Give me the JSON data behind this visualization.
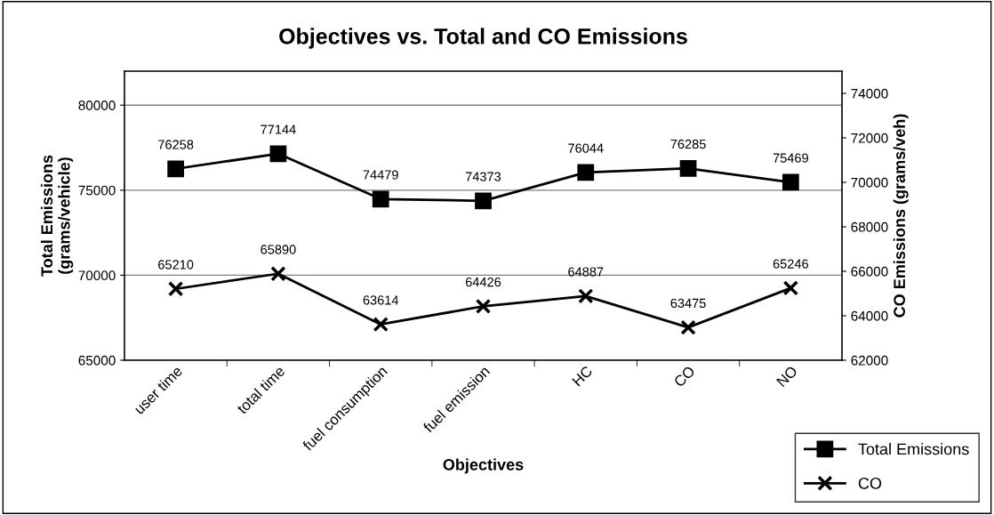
{
  "chart_data": {
    "type": "line",
    "title": "Objectives vs. Total and CO Emissions",
    "xlabel": "Objectives",
    "ylabel": "Total Emissions\n(grams/vehicle)",
    "y2label": "CO Emissions (grams/veh)",
    "categories": [
      "user time",
      "total time",
      "fuel consumption",
      "fuel emission",
      "HC",
      "CO",
      "NO"
    ],
    "series": [
      {
        "name": "Total Emissions",
        "color": "#000000",
        "marker": "square",
        "values": [
          76258,
          77144,
          74479,
          74373,
          76044,
          76285,
          75469
        ]
      },
      {
        "name": "CO",
        "color": "#000000",
        "marker": "cross",
        "axis": "y2",
        "values": [
          65210,
          65890,
          63614,
          64426,
          64887,
          63475,
          65246
        ]
      }
    ],
    "ylim": [
      65000,
      82000
    ],
    "yticks": [
      65000,
      70000,
      75000,
      80000
    ],
    "y2lim": [
      62000,
      75000
    ],
    "y2ticks": [
      62000,
      64000,
      66000,
      68000,
      70000,
      72000,
      74000
    ],
    "grid": "y",
    "legend": "bottom right",
    "data_labels": true,
    "line_style": "solid"
  }
}
